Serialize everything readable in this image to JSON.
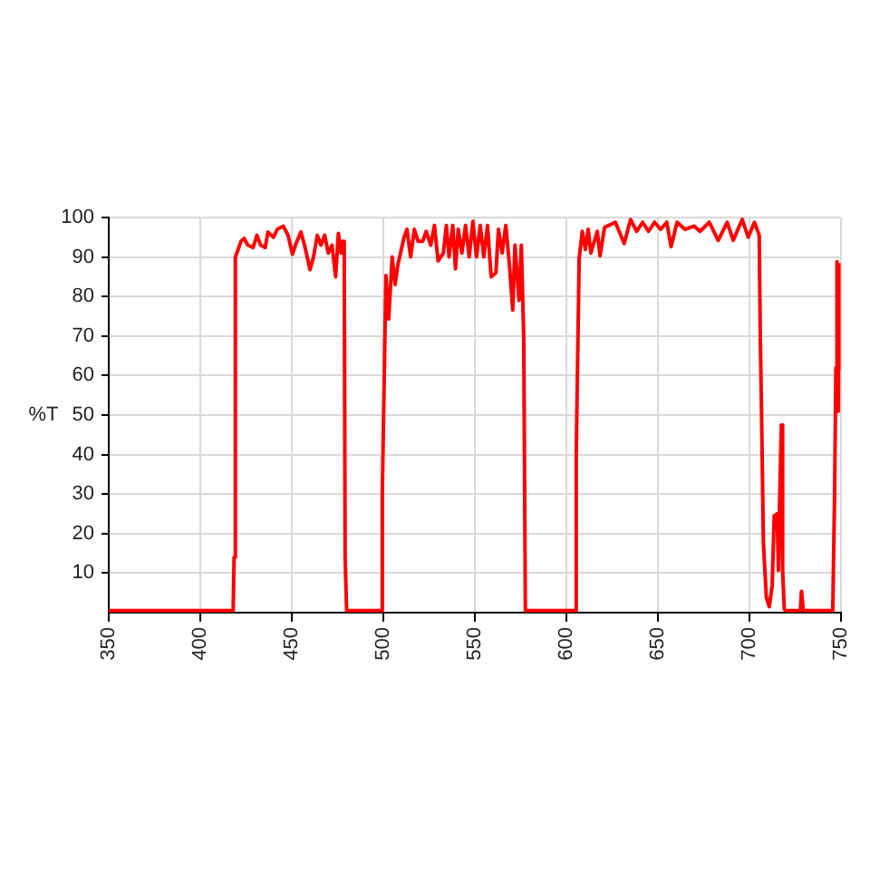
{
  "chart_data": {
    "type": "line",
    "ylabel": "%T",
    "x": [
      350,
      418,
      418.5,
      419.2,
      420,
      422.3,
      424,
      426,
      428.9,
      431,
      433,
      435.5,
      437,
      440,
      442.1,
      445.4,
      448,
      450.4,
      452,
      455,
      457,
      460,
      461.9,
      464,
      466,
      468,
      470,
      472,
      474,
      475.5,
      477,
      478,
      478.7,
      479.2,
      480,
      499,
      499.5,
      501.5,
      503,
      504.9,
      506.5,
      508,
      511.4,
      513,
      515,
      517,
      519,
      521.6,
      523.5,
      526,
      528,
      530,
      532.9,
      534.5,
      536,
      538,
      539.5,
      541,
      543,
      545,
      547,
      549,
      551,
      553,
      555,
      557,
      559,
      561.6,
      563,
      565,
      567,
      569,
      570.8,
      572,
      574.2,
      575.5,
      576.8,
      577.7,
      605,
      605.5,
      607.1,
      608.8,
      610.5,
      612,
      613.5,
      617,
      618.5,
      621,
      626.9,
      631.7,
      635.2,
      638.5,
      641.8,
      645,
      648.3,
      651.6,
      655,
      657.3,
      660.6,
      664.9,
      669.9,
      673.2,
      678.2,
      683.1,
      688,
      691.3,
      696.2,
      699.5,
      702.9,
      705.5,
      706.1,
      706.8,
      707.8,
      709.4,
      711,
      712.6,
      713.7,
      715.3,
      716,
      716.6,
      717.6,
      718.3,
      719.2,
      720,
      728,
      728.6,
      729.6,
      745.7,
      746.7,
      747.4,
      748,
      748.8,
      749.3,
      750
    ],
    "values": [
      0.5,
      0.5,
      14,
      90,
      91,
      94,
      94.7,
      93,
      92.4,
      95.5,
      93,
      92.4,
      96.3,
      95,
      97,
      97.8,
      95.5,
      90.7,
      93,
      96.3,
      93,
      86.8,
      90,
      95.5,
      93,
      95.5,
      91,
      93,
      85,
      96,
      91,
      94,
      92,
      14,
      0.5,
      0.5,
      30,
      85.3,
      74.3,
      90,
      83,
      88,
      95,
      97,
      90,
      97,
      94,
      94,
      96.5,
      93,
      98,
      89,
      91,
      98,
      90,
      98,
      87,
      97,
      91,
      98,
      90,
      99,
      90,
      98,
      90,
      98,
      85,
      86,
      97,
      91,
      98,
      88,
      76.6,
      93,
      79,
      93,
      69.7,
      0.5,
      0.5,
      40,
      89.6,
      96.5,
      91.9,
      97,
      91,
      96.5,
      90.3,
      97.5,
      98.8,
      93.4,
      99.5,
      96.5,
      98.8,
      96.5,
      98.8,
      97,
      98.8,
      92.6,
      98.8,
      97,
      97.8,
      96.5,
      98.8,
      94.2,
      98.8,
      94.2,
      99.5,
      95,
      98.8,
      95.5,
      69.7,
      49.8,
      17.6,
      3.8,
      1.5,
      6.9,
      24.5,
      25,
      10.7,
      26.8,
      47.5,
      10.7,
      0.8,
      0.5,
      0.5,
      5.4,
      0.5,
      0.5,
      30,
      62,
      88.8,
      51,
      88,
      62
    ],
    "color": "#ff0000",
    "xlim": [
      350,
      750
    ],
    "xticks": [
      350,
      400,
      450,
      500,
      550,
      600,
      650,
      700,
      750
    ],
    "ylim": [
      0,
      100
    ],
    "yticks": [
      10,
      20,
      30,
      40,
      50,
      60,
      70,
      80,
      90,
      100
    ],
    "grid": true,
    "marker": "none",
    "line_style": "solid"
  }
}
